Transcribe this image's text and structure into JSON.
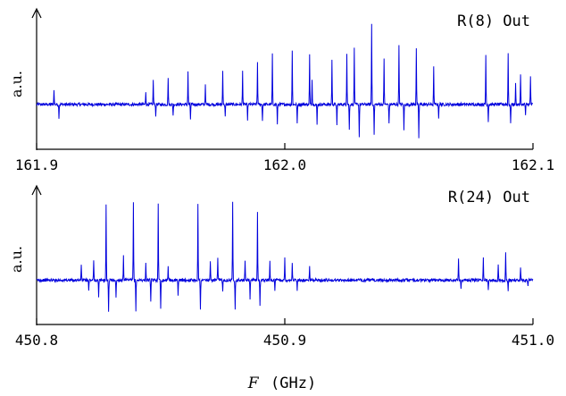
{
  "figure": {
    "xlabel_var": "F",
    "xlabel_unit": "(GHz)"
  },
  "chart_data": [
    {
      "type": "line",
      "annotation": "R(8) Out",
      "ylabel": "a.u.",
      "xlim": [
        161.9,
        162.1
      ],
      "xticks": [
        "161.9",
        "162.0",
        "162.1"
      ],
      "series_color": "#0000dd",
      "baseline": 0,
      "ylim": [
        -1.05,
        2.5
      ],
      "peaks": [
        {
          "x": 161.907,
          "y": 0.42
        },
        {
          "x": 161.909,
          "y": -0.35
        },
        {
          "x": 161.944,
          "y": 0.35
        },
        {
          "x": 161.947,
          "y": 0.68
        },
        {
          "x": 161.948,
          "y": -0.3
        },
        {
          "x": 161.953,
          "y": 0.75
        },
        {
          "x": 161.955,
          "y": -0.3
        },
        {
          "x": 161.961,
          "y": 0.9
        },
        {
          "x": 161.962,
          "y": -0.4
        },
        {
          "x": 161.968,
          "y": 0.55
        },
        {
          "x": 161.975,
          "y": 0.95
        },
        {
          "x": 161.976,
          "y": -0.35
        },
        {
          "x": 161.983,
          "y": 0.9
        },
        {
          "x": 161.985,
          "y": -0.4
        },
        {
          "x": 161.989,
          "y": 1.15
        },
        {
          "x": 161.991,
          "y": -0.45
        },
        {
          "x": 161.995,
          "y": 1.35
        },
        {
          "x": 161.997,
          "y": -0.55
        },
        {
          "x": 162.003,
          "y": 1.45
        },
        {
          "x": 162.005,
          "y": -0.55
        },
        {
          "x": 162.01,
          "y": 1.35
        },
        {
          "x": 162.011,
          "y": 0.7
        },
        {
          "x": 162.013,
          "y": -0.55
        },
        {
          "x": 162.019,
          "y": 1.2
        },
        {
          "x": 162.021,
          "y": -0.6
        },
        {
          "x": 162.025,
          "y": 1.4
        },
        {
          "x": 162.026,
          "y": -0.7
        },
        {
          "x": 162.028,
          "y": 1.55
        },
        {
          "x": 162.03,
          "y": -0.9
        },
        {
          "x": 162.035,
          "y": 2.2
        },
        {
          "x": 162.036,
          "y": -0.8
        },
        {
          "x": 162.04,
          "y": 1.25
        },
        {
          "x": 162.042,
          "y": -0.55
        },
        {
          "x": 162.046,
          "y": 1.65
        },
        {
          "x": 162.048,
          "y": -0.7
        },
        {
          "x": 162.053,
          "y": 1.55
        },
        {
          "x": 162.054,
          "y": -0.95
        },
        {
          "x": 162.06,
          "y": 1.0
        },
        {
          "x": 162.062,
          "y": -0.35
        },
        {
          "x": 162.081,
          "y": 1.35
        },
        {
          "x": 162.082,
          "y": -0.45
        },
        {
          "x": 162.09,
          "y": 1.4
        },
        {
          "x": 162.091,
          "y": -0.55
        },
        {
          "x": 162.093,
          "y": 0.55
        },
        {
          "x": 162.095,
          "y": 0.8
        },
        {
          "x": 162.097,
          "y": -0.3
        },
        {
          "x": 162.099,
          "y": 0.75
        }
      ]
    },
    {
      "type": "line",
      "annotation": "R(24) Out",
      "ylabel": "a.u.",
      "xlim": [
        450.8,
        451.0
      ],
      "xticks": [
        "450.8",
        "450.9",
        "451.0"
      ],
      "series_color": "#0000dd",
      "baseline": 0,
      "ylim": [
        -1.05,
        2.5
      ],
      "peaks": [
        {
          "x": 450.818,
          "y": 0.45
        },
        {
          "x": 450.821,
          "y": -0.3
        },
        {
          "x": 450.823,
          "y": 0.55
        },
        {
          "x": 450.825,
          "y": -0.5
        },
        {
          "x": 450.828,
          "y": 2.05
        },
        {
          "x": 450.829,
          "y": -0.9
        },
        {
          "x": 450.832,
          "y": -0.5
        },
        {
          "x": 450.835,
          "y": 0.7
        },
        {
          "x": 450.839,
          "y": 2.15
        },
        {
          "x": 450.84,
          "y": -0.85
        },
        {
          "x": 450.844,
          "y": 0.5
        },
        {
          "x": 450.846,
          "y": -0.6
        },
        {
          "x": 450.849,
          "y": 2.15
        },
        {
          "x": 450.85,
          "y": -0.8
        },
        {
          "x": 450.853,
          "y": 0.4
        },
        {
          "x": 450.857,
          "y": -0.4
        },
        {
          "x": 450.865,
          "y": 2.1
        },
        {
          "x": 450.866,
          "y": -0.8
        },
        {
          "x": 450.87,
          "y": 0.5
        },
        {
          "x": 450.873,
          "y": 0.6
        },
        {
          "x": 450.875,
          "y": -0.3
        },
        {
          "x": 450.879,
          "y": 2.2
        },
        {
          "x": 450.88,
          "y": -0.8
        },
        {
          "x": 450.884,
          "y": 0.55
        },
        {
          "x": 450.886,
          "y": -0.5
        },
        {
          "x": 450.889,
          "y": 1.85
        },
        {
          "x": 450.89,
          "y": -0.7
        },
        {
          "x": 450.894,
          "y": 0.5
        },
        {
          "x": 450.896,
          "y": -0.3
        },
        {
          "x": 450.9,
          "y": 0.6
        },
        {
          "x": 450.903,
          "y": 0.5
        },
        {
          "x": 450.905,
          "y": -0.3
        },
        {
          "x": 450.91,
          "y": 0.35
        },
        {
          "x": 450.97,
          "y": 0.6
        },
        {
          "x": 450.971,
          "y": -0.2
        },
        {
          "x": 450.98,
          "y": 0.65
        },
        {
          "x": 450.982,
          "y": -0.25
        },
        {
          "x": 450.986,
          "y": 0.45
        },
        {
          "x": 450.989,
          "y": 0.8
        },
        {
          "x": 450.99,
          "y": -0.3
        },
        {
          "x": 450.995,
          "y": 0.35
        },
        {
          "x": 450.998,
          "y": -0.2
        }
      ]
    }
  ]
}
